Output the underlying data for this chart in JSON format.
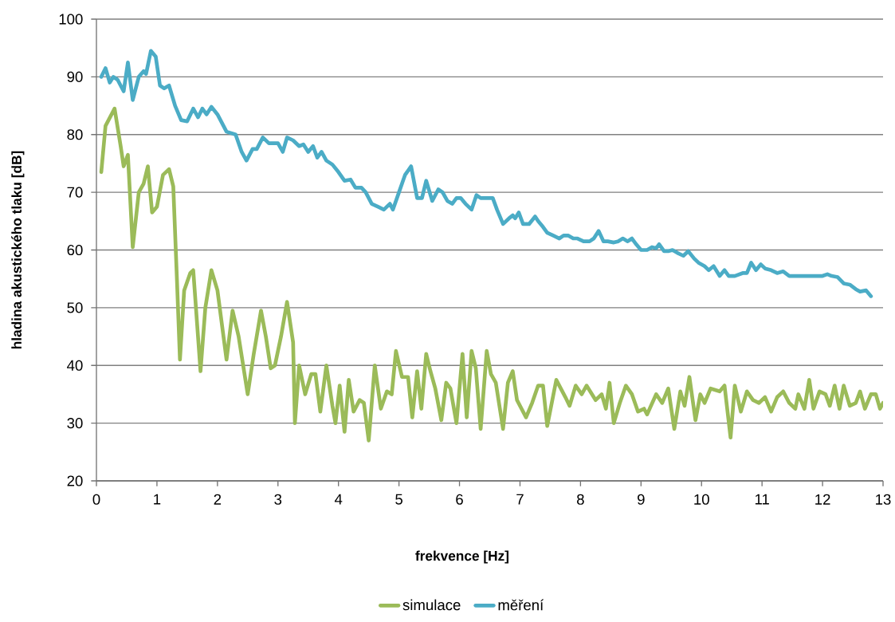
{
  "chart_data": {
    "type": "line",
    "xlabel": "frekvence [Hz]",
    "ylabel": "hladina akustického tlaku [dB]",
    "xlim": [
      0,
      13
    ],
    "ylim": [
      20,
      100
    ],
    "xticks": [
      0,
      1,
      2,
      3,
      4,
      5,
      6,
      7,
      8,
      9,
      10,
      11,
      12,
      13
    ],
    "yticks": [
      20,
      30,
      40,
      50,
      60,
      70,
      80,
      90,
      100
    ],
    "grid": "y",
    "legend": "bottom",
    "marker": "none",
    "line_style": "solid",
    "series": [
      {
        "name": "simulace",
        "color": "#9bbb59",
        "x": [
          0.08,
          0.15,
          0.2,
          0.3,
          0.4,
          0.45,
          0.52,
          0.6,
          0.7,
          0.78,
          0.85,
          0.92,
          1.0,
          1.1,
          1.2,
          1.27,
          1.33,
          1.38,
          1.45,
          1.55,
          1.6,
          1.72,
          1.8,
          1.9,
          2.0,
          2.05,
          2.15,
          2.25,
          2.35,
          2.5,
          2.6,
          2.72,
          2.8,
          2.88,
          2.95,
          3.05,
          3.15,
          3.25,
          3.28,
          3.35,
          3.45,
          3.55,
          3.62,
          3.7,
          3.8,
          3.9,
          3.95,
          4.02,
          4.1,
          4.17,
          4.25,
          4.35,
          4.42,
          4.5,
          4.6,
          4.7,
          4.8,
          4.88,
          4.95,
          5.05,
          5.15,
          5.22,
          5.3,
          5.37,
          5.45,
          5.52,
          5.6,
          5.7,
          5.78,
          5.85,
          5.95,
          6.05,
          6.12,
          6.2,
          6.27,
          6.35,
          6.45,
          6.52,
          6.6,
          6.72,
          6.8,
          6.88,
          6.95,
          7.1,
          7.2,
          7.3,
          7.38,
          7.45,
          7.6,
          7.75,
          7.82,
          7.92,
          8.02,
          8.1,
          8.25,
          8.35,
          8.42,
          8.48,
          8.55,
          8.65,
          8.75,
          8.85,
          8.95,
          9.05,
          9.1,
          9.25,
          9.35,
          9.45,
          9.55,
          9.65,
          9.72,
          9.8,
          9.9,
          9.98,
          10.05,
          10.15,
          10.3,
          10.38,
          10.48,
          10.55,
          10.65,
          10.75,
          10.85,
          10.95,
          11.05,
          11.15,
          11.25,
          11.35,
          11.45,
          11.55,
          11.6,
          11.7,
          11.78,
          11.85,
          11.95,
          12.05,
          12.12,
          12.2,
          12.28,
          12.35,
          12.45,
          12.55,
          12.62,
          12.7,
          12.8,
          12.88,
          12.95,
          13.0
        ],
        "values": [
          73.5,
          81.5,
          82.5,
          84.5,
          78,
          74.5,
          76.5,
          60.5,
          70,
          71.5,
          74.5,
          66.5,
          67.5,
          73,
          74,
          71,
          55,
          41,
          53,
          56,
          56.5,
          39,
          50,
          56.5,
          53,
          49,
          41,
          49.5,
          45,
          35,
          42,
          49.5,
          45,
          39.5,
          40,
          45,
          51,
          44,
          30,
          40,
          35,
          38.5,
          38.5,
          32,
          40,
          33,
          30,
          36.5,
          28.5,
          37.5,
          32,
          34,
          33.5,
          27,
          40,
          32.5,
          35.5,
          35,
          42.5,
          38,
          38,
          31,
          39,
          32.5,
          42,
          39,
          36,
          30.5,
          37,
          36,
          30,
          42,
          31,
          42.5,
          39.5,
          29,
          42.5,
          38.5,
          37,
          29,
          37,
          39,
          34,
          31,
          33.5,
          36.5,
          36.5,
          29.5,
          37.5,
          34.5,
          33,
          36.5,
          35,
          36.5,
          34,
          35,
          32.5,
          37,
          30,
          33.5,
          36.5,
          35,
          32,
          32.5,
          31.5,
          35,
          33.5,
          36,
          29,
          35.5,
          33,
          38,
          30.5,
          35,
          33.5,
          36,
          35.5,
          36.5,
          27.5,
          36.5,
          32,
          35.5,
          34,
          33.5,
          34.5,
          32,
          34.5,
          35.5,
          33.5,
          32.5,
          35,
          32.5,
          37.5,
          32.5,
          35.5,
          35,
          33,
          36.5,
          32.5,
          36.5,
          33,
          33.5,
          35.5,
          32.5,
          35,
          35,
          32.5,
          33.5
        ]
      },
      {
        "name": "měření",
        "color": "#4bacc6",
        "x": [
          0.08,
          0.15,
          0.22,
          0.28,
          0.35,
          0.45,
          0.52,
          0.6,
          0.7,
          0.78,
          0.82,
          0.9,
          0.98,
          1.05,
          1.12,
          1.2,
          1.3,
          1.4,
          1.5,
          1.6,
          1.68,
          1.75,
          1.82,
          1.9,
          2.0,
          2.05,
          2.15,
          2.3,
          2.4,
          2.48,
          2.58,
          2.65,
          2.75,
          2.85,
          3.0,
          3.08,
          3.15,
          3.25,
          3.35,
          3.42,
          3.5,
          3.58,
          3.65,
          3.72,
          3.8,
          3.9,
          4.0,
          4.1,
          4.2,
          4.28,
          4.38,
          4.45,
          4.55,
          4.65,
          4.75,
          4.85,
          4.9,
          5.0,
          5.1,
          5.2,
          5.3,
          5.38,
          5.45,
          5.55,
          5.65,
          5.72,
          5.8,
          5.88,
          5.95,
          6.02,
          6.1,
          6.2,
          6.28,
          6.35,
          6.55,
          6.62,
          6.72,
          6.82,
          6.88,
          6.92,
          6.98,
          7.05,
          7.15,
          7.25,
          7.3,
          7.38,
          7.45,
          7.55,
          7.65,
          7.72,
          7.8,
          7.88,
          7.95,
          8.05,
          8.15,
          8.22,
          8.3,
          8.38,
          8.45,
          8.55,
          8.62,
          8.7,
          8.78,
          8.85,
          8.92,
          9.0,
          9.1,
          9.18,
          9.25,
          9.3,
          9.38,
          9.45,
          9.52,
          9.6,
          9.7,
          9.78,
          9.88,
          9.95,
          10.05,
          10.12,
          10.2,
          10.3,
          10.38,
          10.45,
          10.55,
          10.68,
          10.75,
          10.82,
          10.9,
          10.98,
          11.05,
          11.15,
          11.25,
          11.35,
          11.45,
          11.6,
          11.8,
          12.0,
          12.08,
          12.15,
          12.25,
          12.35,
          12.45,
          12.55,
          12.62,
          12.72,
          12.8
        ],
        "values": [
          90,
          91.5,
          89,
          90,
          89.5,
          87.5,
          92.5,
          86,
          90,
          91,
          90.5,
          94.5,
          93.5,
          88.5,
          88,
          88.5,
          85,
          82.5,
          82.3,
          84.5,
          83,
          84.5,
          83.5,
          84.8,
          83.5,
          82.5,
          80.5,
          80,
          77,
          75.5,
          77.5,
          77.5,
          79.5,
          78.5,
          78.5,
          77,
          79.5,
          79,
          78,
          78.3,
          77,
          78,
          76,
          77,
          75.5,
          74.8,
          73.5,
          72,
          72.2,
          70.8,
          70.8,
          70,
          68,
          67.5,
          67,
          68,
          67,
          70,
          73,
          74.5,
          69,
          69,
          72,
          68.5,
          70.5,
          70,
          68.5,
          68,
          69,
          69,
          68,
          67,
          69.5,
          69,
          69,
          67,
          64.5,
          65.5,
          66,
          65.5,
          66.5,
          64.5,
          64.5,
          65.8,
          65,
          64,
          63,
          62.5,
          62,
          62.5,
          62.5,
          62,
          62,
          61.5,
          61.5,
          62,
          63.3,
          61.5,
          61.5,
          61.3,
          61.5,
          62,
          61.5,
          62,
          61,
          60,
          60,
          60.5,
          60.3,
          61,
          59.8,
          59.8,
          60,
          59.5,
          59,
          59.8,
          58.5,
          57.8,
          57.2,
          56.5,
          57.2,
          55.5,
          56.5,
          55.5,
          55.5,
          56,
          56,
          57.8,
          56.5,
          57.5,
          56.8,
          56.5,
          56,
          56.3,
          55.5,
          55.5,
          55.5,
          55.5,
          55.8,
          55.5,
          55.3,
          54.2,
          54,
          53.2,
          52.8,
          53,
          52
        ]
      }
    ]
  }
}
